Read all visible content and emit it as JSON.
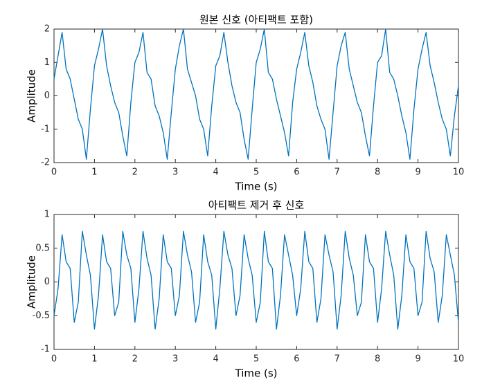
{
  "chart_data": [
    {
      "type": "line",
      "title": "원본 신호 (아티팩트 포함)",
      "xlabel": "Time (s)",
      "ylabel": "Amplitude",
      "color": "#0072bd",
      "x": [
        0,
        0.1,
        0.2,
        0.3,
        0.4,
        0.5,
        0.6,
        0.7,
        0.8,
        0.9,
        1,
        1.1,
        1.2,
        1.3,
        1.4,
        1.5,
        1.6,
        1.7,
        1.8,
        1.9,
        2,
        2.1,
        2.2,
        2.3,
        2.4,
        2.5,
        2.6,
        2.7,
        2.8,
        2.9,
        3,
        3.1,
        3.2,
        3.3,
        3.4,
        3.5,
        3.6,
        3.7,
        3.8,
        3.9,
        4,
        4.1,
        4.2,
        4.3,
        4.4,
        4.5,
        4.6,
        4.7,
        4.8,
        4.9,
        5,
        5.1,
        5.2,
        5.3,
        5.4,
        5.5,
        5.6,
        5.7,
        5.8,
        5.9,
        6,
        6.1,
        6.2,
        6.3,
        6.4,
        6.5,
        6.6,
        6.7,
        6.8,
        6.9,
        7,
        7.1,
        7.2,
        7.3,
        7.4,
        7.5,
        7.6,
        7.7,
        7.8,
        7.9,
        8,
        8.1,
        8.2,
        8.3,
        8.4,
        8.5,
        8.6,
        8.7,
        8.8,
        8.9,
        9,
        9.1,
        9.2,
        9.3,
        9.4,
        9.5,
        9.6,
        9.7,
        9.8,
        9.9,
        10
      ],
      "values": [
        0.5,
        1.2,
        1.9,
        0.8,
        0.5,
        -0.1,
        -0.7,
        -1.0,
        -1.9,
        -0.4,
        0.9,
        1.4,
        2.0,
        0.9,
        0.3,
        -0.2,
        -0.5,
        -1.2,
        -1.8,
        -0.2,
        1.0,
        1.3,
        1.9,
        0.7,
        0.5,
        -0.3,
        -0.6,
        -1.1,
        -1.9,
        -0.5,
        0.8,
        1.5,
        2.0,
        0.8,
        0.4,
        0.0,
        -0.7,
        -1.0,
        -1.8,
        -0.3,
        0.9,
        1.2,
        1.9,
        1.0,
        0.3,
        -0.2,
        -0.5,
        -1.3,
        -1.9,
        -0.4,
        1.0,
        1.4,
        2.0,
        0.7,
        0.5,
        -0.1,
        -0.6,
        -1.1,
        -1.8,
        -0.2,
        0.8,
        1.3,
        1.9,
        0.9,
        0.4,
        -0.3,
        -0.7,
        -1.0,
        -1.9,
        -0.5,
        0.9,
        1.5,
        1.9,
        0.8,
        0.3,
        -0.2,
        -0.5,
        -1.2,
        -1.8,
        -0.3,
        1.0,
        1.2,
        2.0,
        0.7,
        0.5,
        0.0,
        -0.6,
        -1.1,
        -1.9,
        -0.4,
        0.8,
        1.4,
        1.9,
        0.9,
        0.4,
        -0.2,
        -0.7,
        -1.0,
        -1.8,
        -0.6,
        0.3
      ],
      "xlim": [
        0,
        10
      ],
      "xticks": [
        0,
        1,
        2,
        3,
        4,
        5,
        6,
        7,
        8,
        9,
        10
      ],
      "ylim": [
        -2,
        2
      ],
      "yticks": [
        -2,
        -1,
        0,
        1,
        2
      ]
    },
    {
      "type": "line",
      "title": "아티팩트 제거 후 신호",
      "xlabel": "Time (s)",
      "ylabel": "Amplitude",
      "color": "#0072bd",
      "x": [
        0,
        0.1,
        0.2,
        0.3,
        0.4,
        0.5,
        0.6,
        0.7,
        0.8,
        0.9,
        1,
        1.1,
        1.2,
        1.3,
        1.4,
        1.5,
        1.6,
        1.7,
        1.8,
        1.9,
        2,
        2.1,
        2.2,
        2.3,
        2.4,
        2.5,
        2.6,
        2.7,
        2.8,
        2.9,
        3,
        3.1,
        3.2,
        3.3,
        3.4,
        3.5,
        3.6,
        3.7,
        3.8,
        3.9,
        4,
        4.1,
        4.2,
        4.3,
        4.4,
        4.5,
        4.6,
        4.7,
        4.8,
        4.9,
        5,
        5.1,
        5.2,
        5.3,
        5.4,
        5.5,
        5.6,
        5.7,
        5.8,
        5.9,
        6,
        6.1,
        6.2,
        6.3,
        6.4,
        6.5,
        6.6,
        6.7,
        6.8,
        6.9,
        7,
        7.1,
        7.2,
        7.3,
        7.4,
        7.5,
        7.6,
        7.7,
        7.8,
        7.9,
        8,
        8.1,
        8.2,
        8.3,
        8.4,
        8.5,
        8.6,
        8.7,
        8.8,
        8.9,
        9,
        9.1,
        9.2,
        9.3,
        9.4,
        9.5,
        9.6,
        9.7,
        9.8,
        9.9,
        10
      ],
      "values": [
        -0.5,
        -0.1,
        0.7,
        0.3,
        0.2,
        -0.6,
        -0.3,
        0.75,
        0.4,
        0.1,
        -0.7,
        -0.2,
        0.7,
        0.3,
        0.2,
        -0.5,
        -0.3,
        0.75,
        0.4,
        0.2,
        -0.6,
        -0.1,
        0.75,
        0.35,
        0.1,
        -0.7,
        -0.25,
        0.7,
        0.3,
        0.2,
        -0.5,
        -0.2,
        0.75,
        0.4,
        0.15,
        -0.6,
        -0.3,
        0.7,
        0.3,
        0.1,
        -0.7,
        -0.1,
        0.75,
        0.4,
        0.2,
        -0.5,
        -0.2,
        0.7,
        0.35,
        0.1,
        -0.6,
        -0.3,
        0.75,
        0.3,
        0.2,
        -0.7,
        -0.2,
        0.7,
        0.4,
        0.1,
        -0.5,
        -0.1,
        0.75,
        0.3,
        0.2,
        -0.6,
        -0.25,
        0.7,
        0.4,
        0.15,
        -0.7,
        -0.2,
        0.75,
        0.35,
        0.1,
        -0.5,
        -0.3,
        0.7,
        0.3,
        0.2,
        -0.6,
        -0.1,
        0.75,
        0.4,
        0.1,
        -0.7,
        -0.2,
        0.7,
        0.3,
        0.2,
        -0.5,
        -0.3,
        0.75,
        0.35,
        0.15,
        -0.6,
        -0.2,
        0.7,
        0.4,
        0.1,
        -0.6
      ],
      "xlim": [
        0,
        10
      ],
      "xticks": [
        0,
        1,
        2,
        3,
        4,
        5,
        6,
        7,
        8,
        9,
        10
      ],
      "ylim": [
        -1,
        1
      ],
      "yticks": [
        -1,
        -0.5,
        0,
        0.5,
        1
      ]
    }
  ]
}
